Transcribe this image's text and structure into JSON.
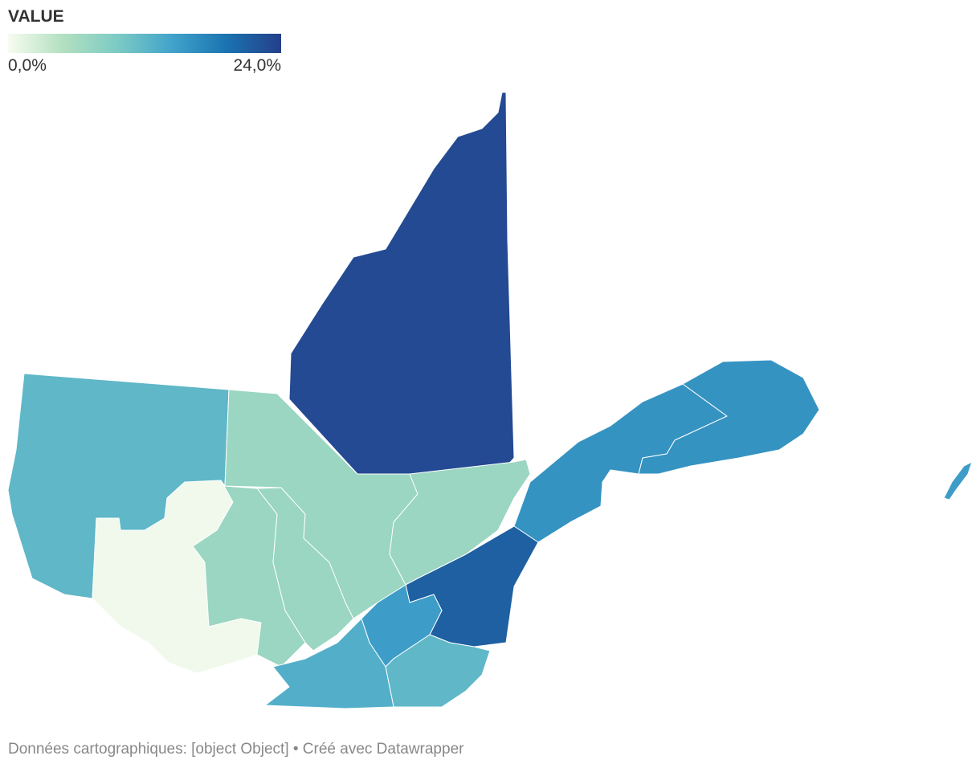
{
  "legend": {
    "title": "VALUE",
    "min_label": "0,0%",
    "max_label": "24,0%",
    "range": [
      0,
      24
    ],
    "colors": [
      "#f7fcf0",
      "#b3e0c0",
      "#7ccbc4",
      "#42a3cb",
      "#1a73b0",
      "#253f8a"
    ]
  },
  "regions": [
    {
      "value": 23
    },
    {
      "value": 12
    },
    {
      "value": 0.5
    },
    {
      "value": 7
    },
    {
      "value": 7
    },
    {
      "value": 7
    },
    {
      "value": 7
    },
    {
      "value": 16
    },
    {
      "value": 16
    },
    {
      "value": 21
    },
    {
      "value": 15
    },
    {
      "value": 12
    },
    {
      "value": 13
    },
    {
      "value": 15
    }
  ],
  "footer": "Données cartographiques: [object Object] • Créé avec Datawrapper"
}
